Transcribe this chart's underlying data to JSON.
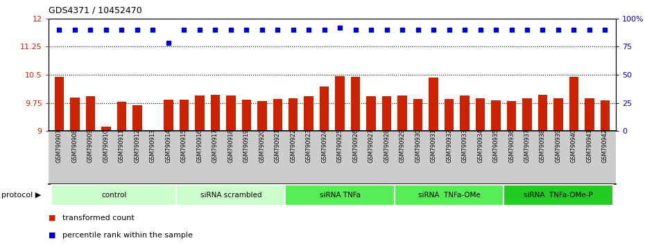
{
  "title": "GDS4371 / 10452470",
  "samples": [
    "GSM790907",
    "GSM790908",
    "GSM790909",
    "GSM790910",
    "GSM790911",
    "GSM790912",
    "GSM790913",
    "GSM790914",
    "GSM790915",
    "GSM790916",
    "GSM790917",
    "GSM790918",
    "GSM790919",
    "GSM790920",
    "GSM790921",
    "GSM790922",
    "GSM790923",
    "GSM790924",
    "GSM790925",
    "GSM790926",
    "GSM790927",
    "GSM790928",
    "GSM790929",
    "GSM790930",
    "GSM790931",
    "GSM790932",
    "GSM790933",
    "GSM790934",
    "GSM790935",
    "GSM790936",
    "GSM790937",
    "GSM790938",
    "GSM790939",
    "GSM790940",
    "GSM790941",
    "GSM790942"
  ],
  "bar_values": [
    10.45,
    9.9,
    9.92,
    9.12,
    9.78,
    9.68,
    9.01,
    9.84,
    9.84,
    9.94,
    9.96,
    9.94,
    9.83,
    9.8,
    9.85,
    9.87,
    9.92,
    10.18,
    10.47,
    10.45,
    9.93,
    9.92,
    9.94,
    9.86,
    10.42,
    9.85,
    9.94,
    9.88,
    9.82,
    9.8,
    9.87,
    9.96,
    9.88,
    10.44,
    9.88,
    9.82
  ],
  "percentile_values": [
    90,
    90,
    90,
    90,
    90,
    90,
    90,
    78,
    90,
    90,
    90,
    90,
    90,
    90,
    90,
    90,
    90,
    90,
    92,
    90,
    90,
    90,
    90,
    90,
    90,
    90,
    90,
    90,
    90,
    90,
    90,
    90,
    90,
    90,
    90,
    90
  ],
  "groups": [
    {
      "label": "control",
      "start": 0,
      "end": 8,
      "color": "#ccffcc"
    },
    {
      "label": "siRNA scrambled",
      "start": 8,
      "end": 15,
      "color": "#ccffcc"
    },
    {
      "label": "siRNA TNFa",
      "start": 15,
      "end": 22,
      "color": "#55ee55"
    },
    {
      "label": "siRNA  TNFa-OMe",
      "start": 22,
      "end": 29,
      "color": "#55ee55"
    },
    {
      "label": "siRNA  TNFa-OMe-P",
      "start": 29,
      "end": 36,
      "color": "#22cc22"
    }
  ],
  "ylim_left": [
    9.0,
    12.0
  ],
  "ylim_right": [
    0,
    100
  ],
  "yticks_left": [
    9.0,
    9.75,
    10.5,
    11.25,
    12.0
  ],
  "ytick_labels_left": [
    "9",
    "9.75",
    "10.5",
    "11.25",
    "12"
  ],
  "yticks_right": [
    0,
    25,
    50,
    75,
    100
  ],
  "ytick_labels_right": [
    "0",
    "25",
    "50",
    "75",
    "100%"
  ],
  "hlines": [
    9.75,
    10.5,
    11.25
  ],
  "bar_color": "#cc2200",
  "dot_color": "#0000cc",
  "xtick_bg_color": "#cccccc",
  "protocol_label": "protocol ▶",
  "legend_items": [
    {
      "color": "#cc2200",
      "label": "transformed count"
    },
    {
      "color": "#0000cc",
      "label": "percentile rank within the sample"
    }
  ]
}
